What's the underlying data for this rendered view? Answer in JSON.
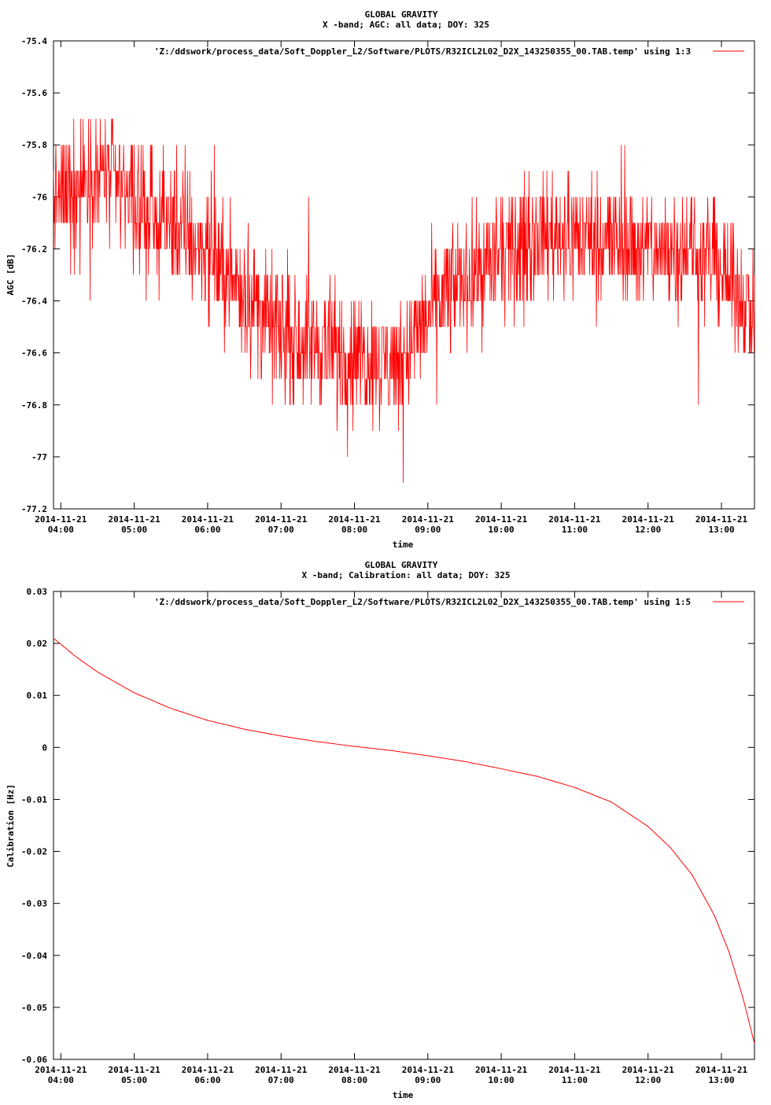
{
  "chart_data": [
    {
      "type": "line",
      "title": "GLOBAL GRAVITY",
      "subtitle": "X -band; AGC: all data; DOY: 325",
      "xlabel": "time",
      "ylabel": "AGC [dB]",
      "ylim": [
        -77.2,
        -75.4
      ],
      "y_ticks": [
        -75.4,
        -75.6,
        -75.8,
        -76,
        -76.2,
        -76.4,
        -76.6,
        -76.8,
        -77,
        -77.2
      ],
      "y_tick_labels": [
        "-75.4",
        "-75.6",
        "-75.8",
        "-76",
        "-76.2",
        "-76.4",
        "-76.6",
        "-76.8",
        "-77",
        "-77.2"
      ],
      "xlim_hours": [
        3.9,
        13.45
      ],
      "x_ticks_hours": [
        4,
        5,
        6,
        7,
        8,
        9,
        10,
        11,
        12,
        13
      ],
      "x_tick_dates": [
        "2014-11-21",
        "2014-11-21",
        "2014-11-21",
        "2014-11-21",
        "2014-11-21",
        "2014-11-21",
        "2014-11-21",
        "2014-11-21",
        "2014-11-21",
        "2014-11-21"
      ],
      "x_tick_times": [
        "04:00",
        "05:00",
        "06:00",
        "07:00",
        "08:00",
        "09:00",
        "10:00",
        "11:00",
        "12:00",
        "13:00"
      ],
      "legend": "'Z:/ddswork/process_data/Soft_Doppler_L2/Software/PLOTS/R32ICL2L02_D2X_143250355_00.TAB.temp' using 1:3",
      "legend_position": "top-right",
      "color": "#ff0000",
      "series": [
        {
          "x_hours": [
            3.9,
            4.2,
            4.5,
            4.8,
            5.1,
            5.4,
            5.7,
            6.0,
            6.3,
            6.6,
            6.9,
            7.2,
            7.5,
            7.8,
            8.1,
            8.4,
            8.7,
            9.0,
            9.3,
            9.6,
            9.9,
            10.2,
            10.5,
            10.8,
            11.1,
            11.4,
            11.7,
            12.0,
            12.3,
            12.6,
            12.9,
            13.2,
            13.45
          ],
          "values": [
            -76.0,
            -75.95,
            -75.9,
            -75.95,
            -76.05,
            -76.1,
            -76.15,
            -76.2,
            -76.3,
            -76.4,
            -76.5,
            -76.55,
            -76.55,
            -76.6,
            -76.6,
            -76.65,
            -76.6,
            -76.45,
            -76.35,
            -76.3,
            -76.25,
            -76.2,
            -76.15,
            -76.15,
            -76.15,
            -76.15,
            -76.2,
            -76.2,
            -76.2,
            -76.2,
            -76.25,
            -76.35,
            -76.45
          ],
          "spread": 0.25
        }
      ]
    },
    {
      "type": "line",
      "title": "GLOBAL GRAVITY",
      "subtitle": "X -band; Calibration: all data; DOY: 325",
      "xlabel": "time",
      "ylabel": "Calibration [Hz]",
      "ylim": [
        -0.06,
        0.03
      ],
      "y_ticks": [
        0.03,
        0.02,
        0.01,
        0,
        -0.01,
        -0.02,
        -0.03,
        -0.04,
        -0.05,
        -0.06
      ],
      "y_tick_labels": [
        "0.03",
        "0.02",
        "0.01",
        "0",
        "-0.01",
        "-0.02",
        "-0.03",
        "-0.04",
        "-0.05",
        "-0.06"
      ],
      "xlim_hours": [
        3.9,
        13.45
      ],
      "x_ticks_hours": [
        4,
        5,
        6,
        7,
        8,
        9,
        10,
        11,
        12,
        13
      ],
      "x_tick_dates": [
        "2014-11-21",
        "2014-11-21",
        "2014-11-21",
        "2014-11-21",
        "2014-11-21",
        "2014-11-21",
        "2014-11-21",
        "2014-11-21",
        "2014-11-21",
        "2014-11-21"
      ],
      "x_tick_times": [
        "04:00",
        "05:00",
        "06:00",
        "07:00",
        "08:00",
        "09:00",
        "10:00",
        "11:00",
        "12:00",
        "13:00"
      ],
      "legend": "'Z:/ddswork/process_data/Soft_Doppler_L2/Software/PLOTS/R32ICL2L02_D2X_143250355_00.TAB.temp' using 1:5",
      "legend_position": "top-right",
      "color": "#ff0000",
      "series": [
        {
          "x_hours": [
            3.9,
            4.2,
            4.5,
            5.0,
            5.5,
            6.0,
            6.5,
            7.0,
            7.5,
            8.0,
            8.5,
            9.0,
            9.5,
            10.0,
            10.5,
            11.0,
            11.5,
            12.0,
            12.3,
            12.6,
            12.9,
            13.1,
            13.3,
            13.45
          ],
          "values": [
            0.021,
            0.0175,
            0.0145,
            0.0105,
            0.0075,
            0.0052,
            0.0035,
            0.0022,
            0.0011,
            0.0002,
            -0.0006,
            -0.0016,
            -0.0027,
            -0.0041,
            -0.0056,
            -0.0077,
            -0.0105,
            -0.0152,
            -0.0192,
            -0.0245,
            -0.0322,
            -0.0392,
            -0.0485,
            -0.057
          ]
        }
      ]
    }
  ]
}
